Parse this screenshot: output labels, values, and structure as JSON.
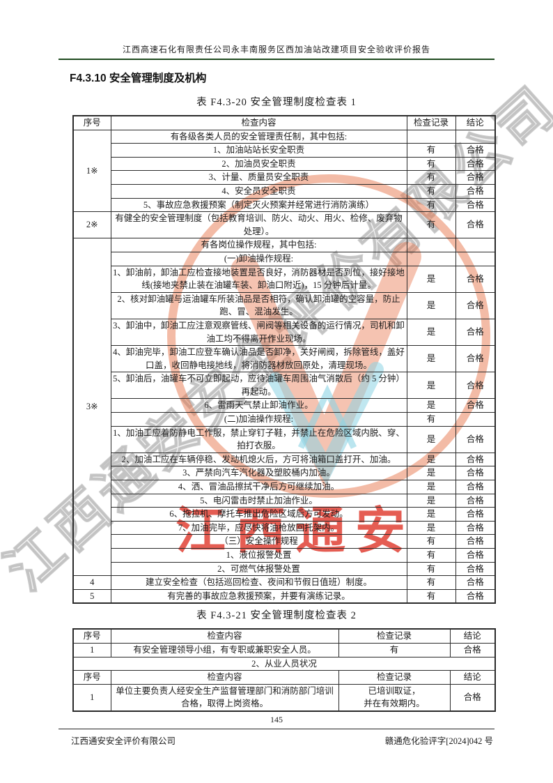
{
  "header": {
    "title": "江西高速石化有限责任公司永丰南服务区西加油站改建项目安全验收评价报告"
  },
  "section_heading": "F4.3.10  安全管理制度及机构",
  "watermark": {
    "diagonal_text": "江西通安安全评价有限公司",
    "seal_text": "江西通安",
    "seal_ring_color": "#e67046",
    "seal_text_color": "#de3428",
    "logo_accent_color": "#8cd4e4"
  },
  "table1": {
    "caption": "表 F4.3-20  安全管理制度检查表 1",
    "columns": [
      "序号",
      "检查内容",
      "检查记录",
      "结论"
    ],
    "groups": [
      {
        "no": "1※",
        "rows": [
          {
            "content": "有各级各类人员的安全管理责任制，其中包括:",
            "record": "",
            "conclusion": ""
          },
          {
            "content": "1、加油站站长安全职责",
            "record": "有",
            "conclusion": "合格"
          },
          {
            "content": "2、加油员安全职责",
            "record": "有",
            "conclusion": "合格"
          },
          {
            "content": "3、计量、质量员安全职责",
            "record": "有",
            "conclusion": "合格"
          },
          {
            "content": "4、安全员安全职责",
            "record": "有",
            "conclusion": "合格"
          },
          {
            "content": "5、事故应急救援预案（制定灭火预案并经常进行消防演练）",
            "record": "有",
            "conclusion": "合格"
          }
        ]
      },
      {
        "no": "2※",
        "rows": [
          {
            "content": "有健全的安全管理制度（包括教育培训、防火、动火、用火、检修、废弃物处理）。",
            "record": "有",
            "conclusion": "合格"
          }
        ]
      },
      {
        "no": "3※",
        "rows": [
          {
            "content": "有各岗位操作规程，其中包括:",
            "record": "",
            "conclusion": ""
          },
          {
            "content": "(一)卸油操作规程:",
            "record": "",
            "conclusion": ""
          },
          {
            "content": "1、卸油前，卸油工应检查接地装置是否良好，消防器材是否到位，接好接地线(接地夹禁止装在油罐车装、卸油口附近)，15 分钟后计量。",
            "record": "是",
            "conclusion": "合格"
          },
          {
            "content": "2、核对卸油罐与运油罐车所装油品是否相符，确认卸油罐的空容量，防止跑、冒、混油发生。",
            "record": "是",
            "conclusion": "合格"
          },
          {
            "content": "3、卸油中，卸油工应注意观察管线、闸阀等相关设备的运行情况，司机和卸油工均不得离开作业现场。",
            "record": "是",
            "conclusion": "合格"
          },
          {
            "content": "4、卸油完毕，卸油工应登车确认油品是否卸净，关好闸阀，拆除管线，盖好口盖，收回静电接地线，将消防器材放回原处，清理现场。",
            "record": "是",
            "conclusion": "合格"
          },
          {
            "content": "5、卸油后，油罐车不可立即起动，应待油罐车周围油气消散后（约 5 分钟）再起动。",
            "record": "是",
            "conclusion": "合格"
          },
          {
            "content": "6、雷雨天气禁止卸油作业。",
            "record": "是",
            "conclusion": "合格"
          },
          {
            "content": "(二)加油操作规程:",
            "record": "有",
            "conclusion": ""
          },
          {
            "content": "1、加油工应着防静电工作服，禁止穿钉子鞋，并禁止在危险区域内脱、穿、拍打衣服。",
            "record": "是",
            "conclusion": "合格"
          },
          {
            "content": "2、加油工应在车辆停稳、发动机熄火后，方可将油箱口盖打开、加油。",
            "record": "是",
            "conclusion": "合格"
          },
          {
            "content": "3、严禁向汽车汽化器及塑胶桶内加油。",
            "record": "是",
            "conclusion": "合格"
          },
          {
            "content": "4、洒、冒油品擦拭干净后方可继续加油。",
            "record": "是",
            "conclusion": "合格"
          },
          {
            "content": "5、电闪雷击时禁止加油作业。",
            "record": "是",
            "conclusion": "合格"
          },
          {
            "content": "6、拖拉机、摩托车推出危险区域后方可发动。",
            "record": "是",
            "conclusion": "合格"
          },
          {
            "content": "7、加油完毕，应尽快将油枪放回托架内。",
            "record": "是",
            "conclusion": "合格"
          },
          {
            "content": "（三）安全操作规程",
            "record": "有",
            "conclusion": "合格"
          },
          {
            "content": "1、液位报警处置",
            "record": "有",
            "conclusion": "合格"
          },
          {
            "content": "2、可燃气体报警处置",
            "record": "有",
            "conclusion": "合格"
          }
        ]
      },
      {
        "no": "4",
        "rows": [
          {
            "content": "建立安全检查（包括巡回检查、夜间和节假日值班）制度。",
            "record": "有",
            "conclusion": "合格"
          }
        ]
      },
      {
        "no": "5",
        "rows": [
          {
            "content": "有完善的事故应急救援预案，并要有演练记录。",
            "record": "有",
            "conclusion": "合格"
          }
        ]
      }
    ]
  },
  "table2": {
    "caption": "表 F4.3-21  安全管理制度检查表 2",
    "columns": [
      "序号",
      "检查内容",
      "检查记录",
      "结论"
    ],
    "rows": [
      {
        "type": "header"
      },
      {
        "type": "row",
        "no": "1",
        "content": "有安全管理领导小组，有专职或兼职安全人员。",
        "record": "有",
        "conclusion": "合格"
      },
      {
        "type": "span",
        "content": "2、从业人员状况"
      },
      {
        "type": "header"
      },
      {
        "type": "row",
        "no": "1",
        "content": "单位主要负责人经安全生产监督管理部门和消防部门培训合格，取得上岗资格。",
        "record": "已培训取证，\n并在有效期内。",
        "conclusion": "合格"
      }
    ]
  },
  "footer": {
    "page_number": "145",
    "company": "江西通安安全评价有限公司",
    "doc_number": "赣通危化验评字[2024]042 号"
  }
}
